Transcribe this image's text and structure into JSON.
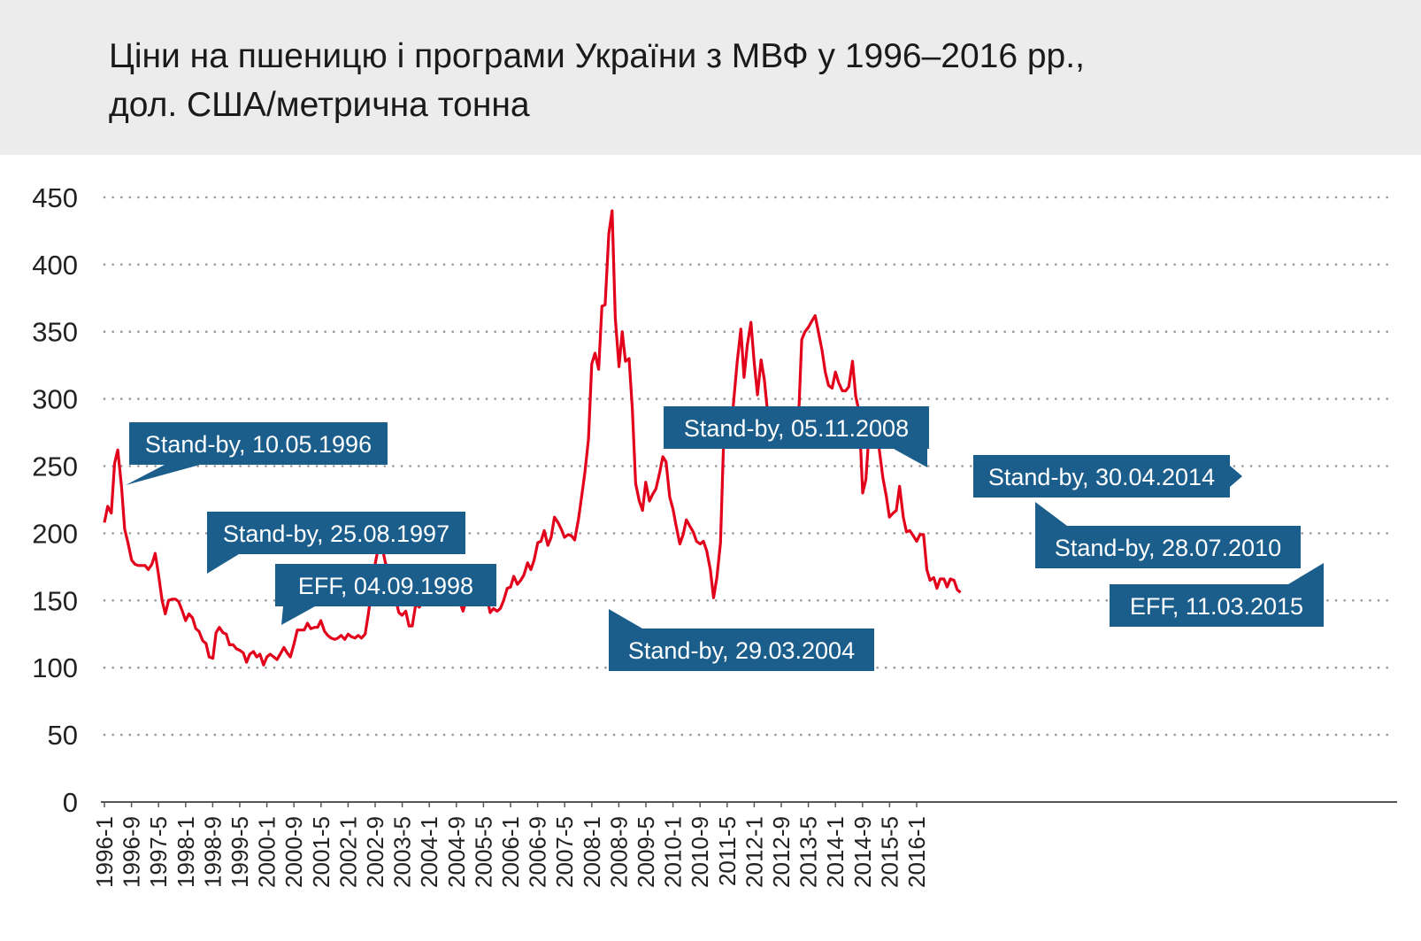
{
  "chart_data": {
    "type": "line",
    "title": "Ціни на пшеницю і програми України з МВФ у 1996–2016 pp.,",
    "subtitle": "дол. США/метрична тонна",
    "xlabel": "",
    "ylabel": "",
    "ylim": [
      0,
      450
    ],
    "yticks": [
      "0",
      "50",
      "100",
      "150",
      "200",
      "250",
      "300",
      "350",
      "400",
      "450"
    ],
    "xticks": [
      "1996-1",
      "1996-9",
      "1997-5",
      "1998-1",
      "1998-9",
      "1999-5",
      "2000-1",
      "2000-9",
      "2001-5",
      "2002-1",
      "2002-9",
      "2003-5",
      "2004-1",
      "2004-9",
      "2005-5",
      "2006-1",
      "2006-9",
      "2007-5",
      "2008-1",
      "2008-9",
      "2009-5",
      "2010-1",
      "2010-9",
      "2011-5",
      "2012-1",
      "2012-9",
      "2013-5",
      "2014-1",
      "2014-9",
      "2015-5",
      "2016-1"
    ],
    "grid": true,
    "line_color": "#e2001a",
    "annotation_color": "#1b5e8c",
    "series": [
      {
        "values": [
          [
            1996.0,
            208
          ],
          [
            1996.08,
            220
          ],
          [
            1996.17,
            215
          ],
          [
            1996.25,
            252
          ],
          [
            1996.33,
            262
          ],
          [
            1996.42,
            235
          ],
          [
            1996.5,
            203
          ],
          [
            1996.58,
            193
          ],
          [
            1996.67,
            180
          ],
          [
            1996.75,
            177
          ],
          [
            1996.83,
            176
          ],
          [
            1996.92,
            176
          ],
          [
            1997.0,
            176
          ],
          [
            1997.08,
            173
          ],
          [
            1997.17,
            177
          ],
          [
            1997.25,
            185
          ],
          [
            1997.33,
            170
          ],
          [
            1997.42,
            150
          ],
          [
            1997.5,
            140
          ],
          [
            1997.58,
            150
          ],
          [
            1997.67,
            151
          ],
          [
            1997.75,
            151
          ],
          [
            1997.83,
            149
          ],
          [
            1997.92,
            142
          ],
          [
            1998.0,
            135
          ],
          [
            1998.08,
            140
          ],
          [
            1998.17,
            137
          ],
          [
            1998.25,
            129
          ],
          [
            1998.33,
            127
          ],
          [
            1998.42,
            120
          ],
          [
            1998.5,
            118
          ],
          [
            1998.58,
            108
          ],
          [
            1998.67,
            107
          ],
          [
            1998.75,
            126
          ],
          [
            1998.83,
            130
          ],
          [
            1998.92,
            126
          ],
          [
            1999.0,
            125
          ],
          [
            1999.08,
            117
          ],
          [
            1999.17,
            117
          ],
          [
            1999.25,
            114
          ],
          [
            1999.33,
            113
          ],
          [
            1999.42,
            111
          ],
          [
            1999.5,
            104
          ],
          [
            1999.58,
            110
          ],
          [
            1999.67,
            112
          ],
          [
            1999.75,
            108
          ],
          [
            1999.83,
            110
          ],
          [
            1999.92,
            102
          ],
          [
            2000.0,
            108
          ],
          [
            2000.08,
            110
          ],
          [
            2000.17,
            108
          ],
          [
            2000.25,
            106
          ],
          [
            2000.33,
            110
          ],
          [
            2000.42,
            115
          ],
          [
            2000.5,
            111
          ],
          [
            2000.58,
            108
          ],
          [
            2000.67,
            118
          ],
          [
            2000.75,
            128
          ],
          [
            2000.83,
            128
          ],
          [
            2000.92,
            128
          ],
          [
            2001.0,
            133
          ],
          [
            2001.08,
            129
          ],
          [
            2001.17,
            130
          ],
          [
            2001.25,
            130
          ],
          [
            2001.33,
            135
          ],
          [
            2001.42,
            127
          ],
          [
            2001.5,
            124
          ],
          [
            2001.58,
            122
          ],
          [
            2001.67,
            121
          ],
          [
            2001.75,
            122
          ],
          [
            2001.83,
            124
          ],
          [
            2001.92,
            121
          ],
          [
            2002.0,
            125
          ],
          [
            2002.08,
            123
          ],
          [
            2002.17,
            122
          ],
          [
            2002.25,
            124
          ],
          [
            2002.33,
            122
          ],
          [
            2002.42,
            125
          ],
          [
            2002.5,
            140
          ],
          [
            2002.58,
            158
          ],
          [
            2002.67,
            178
          ],
          [
            2002.75,
            190
          ],
          [
            2002.83,
            191
          ],
          [
            2002.92,
            178
          ],
          [
            2003.0,
            171
          ],
          [
            2003.08,
            150
          ],
          [
            2003.17,
            151
          ],
          [
            2003.25,
            141
          ],
          [
            2003.33,
            139
          ],
          [
            2003.42,
            142
          ],
          [
            2003.5,
            131
          ],
          [
            2003.58,
            131
          ],
          [
            2003.67,
            148
          ],
          [
            2003.75,
            145
          ],
          [
            2003.83,
            148
          ],
          [
            2003.92,
            158
          ],
          [
            2004.0,
            164
          ],
          [
            2004.08,
            167
          ],
          [
            2004.17,
            165
          ],
          [
            2004.25,
            160
          ],
          [
            2004.33,
            167
          ],
          [
            2004.42,
            166
          ],
          [
            2004.5,
            166
          ],
          [
            2004.58,
            162
          ],
          [
            2004.67,
            153
          ],
          [
            2004.75,
            149
          ],
          [
            2004.83,
            142
          ],
          [
            2004.92,
            152
          ],
          [
            2005.0,
            149
          ],
          [
            2005.08,
            157
          ],
          [
            2005.17,
            153
          ],
          [
            2005.25,
            154
          ],
          [
            2005.33,
            151
          ],
          [
            2005.42,
            152
          ],
          [
            2005.5,
            141
          ],
          [
            2005.58,
            144
          ],
          [
            2005.67,
            142
          ],
          [
            2005.75,
            144
          ],
          [
            2005.83,
            150
          ],
          [
            2005.92,
            159
          ],
          [
            2006.0,
            160
          ],
          [
            2006.08,
            168
          ],
          [
            2006.17,
            162
          ],
          [
            2006.25,
            165
          ],
          [
            2006.33,
            169
          ],
          [
            2006.42,
            178
          ],
          [
            2006.5,
            173
          ],
          [
            2006.58,
            180
          ],
          [
            2006.67,
            193
          ],
          [
            2006.75,
            194
          ],
          [
            2006.83,
            202
          ],
          [
            2006.92,
            191
          ],
          [
            2007.0,
            197
          ],
          [
            2007.08,
            212
          ],
          [
            2007.17,
            208
          ],
          [
            2007.25,
            203
          ],
          [
            2007.33,
            197
          ],
          [
            2007.42,
            199
          ],
          [
            2007.5,
            198
          ],
          [
            2007.58,
            195
          ],
          [
            2007.67,
            210
          ],
          [
            2007.75,
            227
          ],
          [
            2007.83,
            245
          ],
          [
            2007.92,
            270
          ],
          [
            2008.0,
            326
          ],
          [
            2008.08,
            334
          ],
          [
            2008.17,
            322
          ],
          [
            2008.25,
            369
          ],
          [
            2008.33,
            370
          ],
          [
            2008.42,
            423
          ],
          [
            2008.5,
            440
          ],
          [
            2008.58,
            360
          ],
          [
            2008.67,
            324
          ],
          [
            2008.75,
            350
          ],
          [
            2008.83,
            328
          ],
          [
            2008.92,
            330
          ],
          [
            2009.0,
            292
          ],
          [
            2009.08,
            237
          ],
          [
            2009.17,
            224
          ],
          [
            2009.25,
            217
          ],
          [
            2009.33,
            238
          ],
          [
            2009.42,
            224
          ],
          [
            2009.5,
            229
          ],
          [
            2009.58,
            233
          ],
          [
            2009.67,
            245
          ],
          [
            2009.75,
            257
          ],
          [
            2009.83,
            253
          ],
          [
            2009.92,
            227
          ],
          [
            2010.0,
            218
          ],
          [
            2010.08,
            205
          ],
          [
            2010.17,
            192
          ],
          [
            2010.25,
            199
          ],
          [
            2010.33,
            210
          ],
          [
            2010.42,
            205
          ],
          [
            2010.5,
            201
          ],
          [
            2010.58,
            194
          ],
          [
            2010.67,
            192
          ],
          [
            2010.75,
            194
          ],
          [
            2010.83,
            187
          ],
          [
            2010.92,
            173
          ],
          [
            2011.0,
            152
          ],
          [
            2011.08,
            167
          ],
          [
            2011.17,
            193
          ],
          [
            2011.25,
            272
          ],
          [
            2011.33,
            270
          ],
          [
            2011.42,
            273
          ],
          [
            2011.5,
            300
          ],
          [
            2011.58,
            327
          ],
          [
            2011.67,
            352
          ],
          [
            2011.75,
            316
          ],
          [
            2011.83,
            340
          ],
          [
            2011.92,
            357
          ],
          [
            2012.0,
            327
          ],
          [
            2012.08,
            303
          ],
          [
            2012.17,
            329
          ],
          [
            2012.25,
            314
          ],
          [
            2012.33,
            290
          ],
          [
            2012.42,
            280
          ],
          [
            2012.5,
            270
          ],
          [
            2012.58,
            277
          ],
          [
            2012.67,
            278
          ],
          [
            2012.75,
            284
          ],
          [
            2012.83,
            268
          ],
          [
            2012.92,
            265
          ],
          [
            2013.0,
            265
          ],
          [
            2013.08,
            277
          ],
          [
            2013.17,
            344
          ],
          [
            2013.25,
            350
          ],
          [
            2013.33,
            353
          ],
          [
            2013.42,
            358
          ],
          [
            2013.5,
            362
          ],
          [
            2013.58,
            350
          ],
          [
            2013.67,
            336
          ],
          [
            2013.75,
            320
          ],
          [
            2013.83,
            310
          ],
          [
            2013.92,
            308
          ],
          [
            2014.0,
            320
          ],
          [
            2014.08,
            312
          ],
          [
            2014.17,
            306
          ],
          [
            2014.25,
            306
          ],
          [
            2014.33,
            309
          ],
          [
            2014.42,
            328
          ],
          [
            2014.5,
            302
          ],
          [
            2014.58,
            291
          ],
          [
            2014.67,
            230
          ],
          [
            2014.75,
            240
          ],
          [
            2014.83,
            276
          ],
          [
            2014.92,
            273
          ],
          [
            2015.0,
            288
          ],
          [
            2015.08,
            262
          ],
          [
            2015.17,
            241
          ],
          [
            2015.25,
            228
          ],
          [
            2015.33,
            212
          ],
          [
            2015.42,
            215
          ],
          [
            2015.5,
            217
          ],
          [
            2015.58,
            235
          ],
          [
            2015.67,
            212
          ],
          [
            2015.75,
            201
          ],
          [
            2015.83,
            202
          ],
          [
            2015.92,
            198
          ],
          [
            2016.0,
            194
          ],
          [
            2016.08,
            199
          ],
          [
            2016.17,
            199
          ],
          [
            2016.25,
            173
          ],
          [
            2016.33,
            165
          ],
          [
            2016.42,
            167
          ],
          [
            2016.5,
            159
          ],
          [
            2016.58,
            166
          ],
          [
            2016.67,
            166
          ],
          [
            2016.75,
            160
          ],
          [
            2016.83,
            166
          ],
          [
            2016.92,
            165
          ],
          [
            2017.0,
            158
          ],
          [
            2017.08,
            156
          ]
        ]
      }
    ],
    "annotations": [
      {
        "text": "Stand-by, 10.05.1996",
        "date": "1996-5",
        "value": 240
      },
      {
        "text": "Stand-by, 25.08.1997",
        "date": "1997-8",
        "value": 170
      },
      {
        "text": "EFF,  04.09.1998",
        "date": "1998-9",
        "value": 130
      },
      {
        "text": "Stand-by, 29.03.2004",
        "date": "2004-3",
        "value": 145
      },
      {
        "text": "Stand-by, 05.11.2008",
        "date": "2008-11",
        "value": 245
      },
      {
        "text": "Stand-by, 30.04.2014",
        "date": "2014-4",
        "value": 253
      },
      {
        "text": "Stand-by, 28.07.2010",
        "date": "2010-7",
        "value": 220
      },
      {
        "text": "EFF,  11.03.2015",
        "date": "2015-3",
        "value": 175
      }
    ]
  }
}
